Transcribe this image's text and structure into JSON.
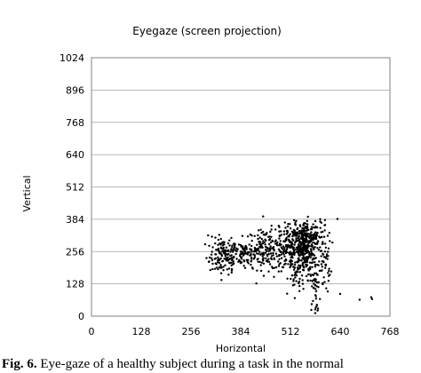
{
  "chart_data": {
    "type": "scatter",
    "title": "Eyegaze (screen projection)",
    "xlabel": "Horizontal",
    "ylabel": "Vertical",
    "xlim": [
      0,
      768
    ],
    "ylim": [
      0,
      1024
    ],
    "xticks": [
      "0",
      "128",
      "256",
      "384",
      "512",
      "640",
      "768"
    ],
    "yticks": [
      "0",
      "128",
      "256",
      "384",
      "512",
      "640",
      "768",
      "896",
      "1024"
    ],
    "grid": true,
    "legend": "none",
    "clusters": [
      {
        "cx": 340,
        "cy": 235,
        "sx": 18,
        "sy": 35,
        "n": 120
      },
      {
        "cx": 390,
        "cy": 250,
        "sx": 28,
        "sy": 30,
        "n": 110
      },
      {
        "cx": 455,
        "cy": 265,
        "sx": 30,
        "sy": 40,
        "n": 150
      },
      {
        "cx": 515,
        "cy": 270,
        "sx": 20,
        "sy": 45,
        "n": 180
      },
      {
        "cx": 548,
        "cy": 265,
        "sx": 14,
        "sy": 55,
        "n": 260
      },
      {
        "cx": 570,
        "cy": 320,
        "sx": 22,
        "sy": 30,
        "n": 90
      },
      {
        "cx": 600,
        "cy": 215,
        "sx": 8,
        "sy": 40,
        "n": 40
      },
      {
        "cx": 575,
        "cy": 120,
        "sx": 6,
        "sy": 50,
        "n": 40
      },
      {
        "cx": 530,
        "cy": 150,
        "sx": 15,
        "sy": 25,
        "n": 25
      }
    ],
    "points": [
      [
        430,
        340
      ],
      [
        438,
        330
      ],
      [
        445,
        322
      ],
      [
        300,
        320
      ],
      [
        310,
        315
      ],
      [
        335,
        290
      ],
      [
        355,
        300
      ],
      [
        360,
        310
      ],
      [
        600,
        360
      ],
      [
        612,
        330
      ],
      [
        633,
        385
      ],
      [
        610,
        140
      ],
      [
        600,
        135
      ],
      [
        690,
        65
      ],
      [
        720,
        75
      ],
      [
        722,
        68
      ],
      [
        580,
        45
      ],
      [
        583,
        30
      ],
      [
        582,
        22
      ],
      [
        570,
        60
      ],
      [
        608,
        98
      ],
      [
        296,
        230
      ],
      [
        302,
        215
      ],
      [
        640,
        88
      ]
    ]
  },
  "caption": {
    "label": "Fig. 6.",
    "text": "Eye-gaze of a healthy subject during a task in the normal"
  }
}
